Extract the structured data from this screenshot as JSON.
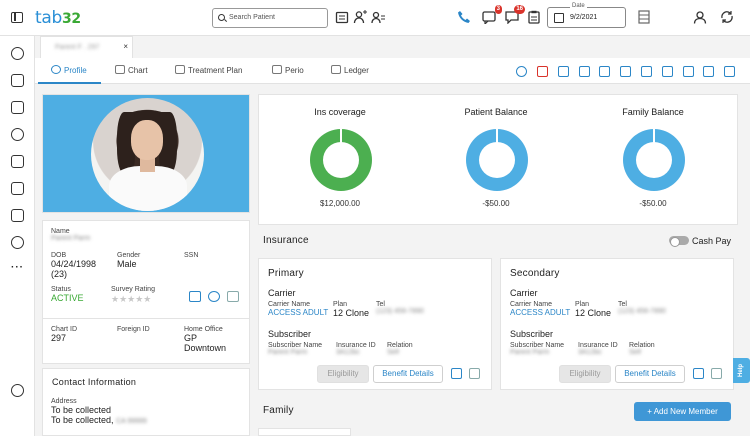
{
  "app": {
    "logo_main": "tab",
    "logo_num": "32"
  },
  "search": {
    "placeholder": "Search Patient"
  },
  "notifications": {
    "messages_badge": "3",
    "chat_badge": "16"
  },
  "date_field": {
    "label": "Date",
    "value": "9/2/2021"
  },
  "patient_tab": {
    "name": "Parent F . 297",
    "close": "×"
  },
  "tabs": [
    {
      "label": "Profile",
      "icon": "profile-icon"
    },
    {
      "label": "Chart",
      "icon": "chart-icon"
    },
    {
      "label": "Treatment Plan",
      "icon": "treatment-plan-icon"
    },
    {
      "label": "Perio",
      "icon": "perio-icon"
    },
    {
      "label": "Ledger",
      "icon": "ledger-icon"
    }
  ],
  "profile": {
    "name_label": "Name",
    "name_value": "Parent Parm",
    "dob_label": "DOB",
    "dob_value": "04/24/1998",
    "age": "(23)",
    "gender_label": "Gender",
    "gender_value": "Male",
    "ssn_label": "SSN",
    "status_label": "Status",
    "status_value": "ACTIVE",
    "survey_label": "Survey Rating",
    "stars": "★★★★★",
    "chart_id_label": "Chart ID",
    "chart_id_value": "297",
    "foreign_id_label": "Foreign ID",
    "home_office_label": "Home Office",
    "home_office_value_1": "GP",
    "home_office_value_2": "Downtown"
  },
  "contact": {
    "title": "Contact Information",
    "address_label": "Address",
    "address_line_1": "To be collected",
    "address_line_2": "To be collected,",
    "address_blur": "CA 99999"
  },
  "balances": [
    {
      "title": "Ins coverage",
      "amount": "$12,000.00",
      "color": "#4caf50"
    },
    {
      "title": "Patient Balance",
      "amount": "-$50.00",
      "color": "#4eaee3"
    },
    {
      "title": "Family Balance",
      "amount": "-$50.00",
      "color": "#4eaee3"
    }
  ],
  "insurance": {
    "title": "Insurance",
    "cash_pay_label": "Cash Pay",
    "primary": {
      "title": "Primary",
      "carrier_title": "Carrier",
      "carrier_name_label": "Carrier Name",
      "carrier_name_value": "ACCESS ADULT",
      "plan_label": "Plan",
      "plan_value": "12 Clone",
      "tel_label": "Tel",
      "tel_value": "(123) 456-7890",
      "subscriber_title": "Subscriber",
      "subscriber_name_label": "Subscriber Name",
      "subscriber_name_value": "Parent Parm",
      "insurance_id_label": "Insurance ID",
      "insurance_id_value": "3A12bc",
      "relation_label": "Relation",
      "relation_value": "Self",
      "eligibility_label": "Eligibility",
      "benefit_label": "Benefit Details"
    },
    "secondary": {
      "title": "Secondary",
      "carrier_title": "Carrier",
      "carrier_name_label": "Carrier Name",
      "carrier_name_value": "ACCESS ADULT",
      "plan_label": "Plan",
      "plan_value": "12 Clone",
      "tel_label": "Tel",
      "tel_value": "(123) 456-7890",
      "subscriber_title": "Subscriber",
      "subscriber_name_label": "Subscriber Name",
      "subscriber_name_value": "Parent Parm",
      "insurance_id_label": "Insurance ID",
      "insurance_id_value": "3A12bc",
      "relation_label": "Relation",
      "relation_value": "Self",
      "eligibility_label": "Eligibility",
      "benefit_label": "Benefit Details"
    }
  },
  "family": {
    "title": "Family",
    "add_label": "+ Add New Member"
  },
  "help": {
    "label": "Help"
  }
}
